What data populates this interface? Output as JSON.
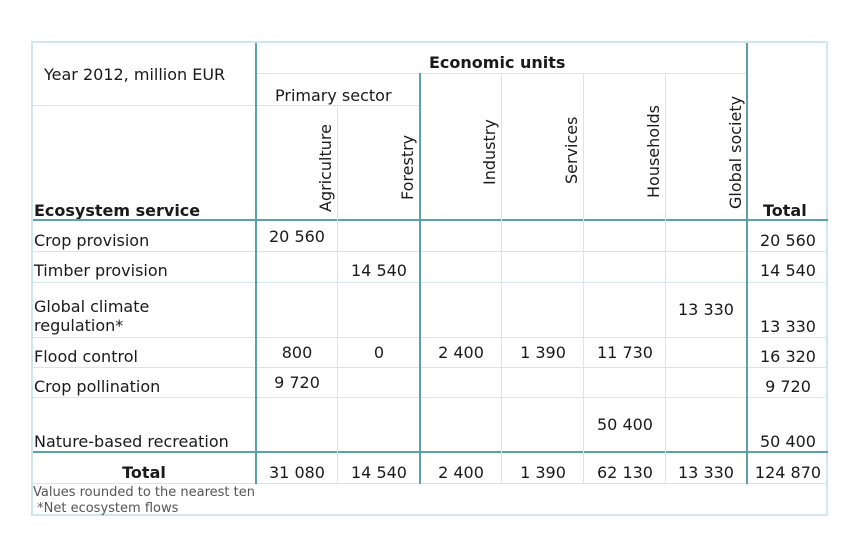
{
  "header": {
    "year_label": "Year 2012, million EUR",
    "economic_units": "Economic units",
    "primary_sector": "Primary sector",
    "ecosystem_service": "Ecosystem service",
    "total": "Total",
    "columns": [
      "Agriculture",
      "Forestry",
      "Industry",
      "Services",
      "Households",
      "Global society"
    ]
  },
  "rows": [
    {
      "label": "Crop provision",
      "values": [
        "20 560",
        "",
        "",
        "",
        "",
        ""
      ],
      "total": "20 560"
    },
    {
      "label": "Timber provision",
      "values": [
        "",
        "14 540",
        "",
        "",
        "",
        ""
      ],
      "total": "14 540"
    },
    {
      "label": "Global climate",
      "label2": "regulation*",
      "values": [
        "",
        "",
        "",
        "",
        "",
        "13 330"
      ],
      "total": "13 330"
    },
    {
      "label": "Flood control",
      "values": [
        "800",
        "0",
        "2 400",
        "1 390",
        "11 730",
        ""
      ],
      "total": "16 320"
    },
    {
      "label": "Crop pollination",
      "values": [
        "9 720",
        "",
        "",
        "",
        "",
        ""
      ],
      "total": "9 720"
    },
    {
      "label": "Nature-based recreation",
      "values": [
        "",
        "",
        "",
        "",
        "50 400",
        ""
      ],
      "total": "50 400"
    }
  ],
  "totals": {
    "label": "Total",
    "values": [
      "31 080",
      "14 540",
      "2 400",
      "1 390",
      "62 130",
      "13 330"
    ],
    "grand": "124 870"
  },
  "notes": [
    "Values rounded to the nearest ten",
    " *Net ecosystem flows"
  ]
}
